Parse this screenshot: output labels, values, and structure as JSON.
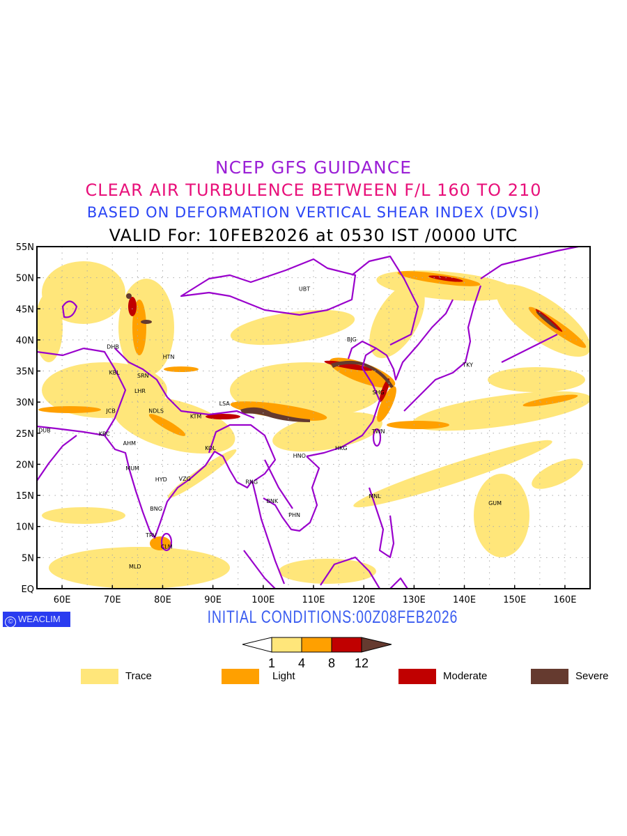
{
  "titles": {
    "line1": "NCEP GFS GUIDANCE",
    "line2": "CLEAR AIR TURBULENCE BETWEEN F/L 160 TO 210",
    "line3": "BASED ON DEFORMATION VERTICAL SHEAR INDEX (DVSI)",
    "line4": "VALID For: 10FEB2026 at 0530 IST /0000 UTC"
  },
  "map": {
    "lon_range": [
      55,
      165
    ],
    "lat_range": [
      0,
      55
    ],
    "lat_ticks": [
      "EQ",
      "5N",
      "10N",
      "15N",
      "20N",
      "25N",
      "30N",
      "35N",
      "40N",
      "45N",
      "50N",
      "55N"
    ],
    "lon_ticks": [
      "60E",
      "70E",
      "80E",
      "90E",
      "100E",
      "110E",
      "120E",
      "130E",
      "140E",
      "150E",
      "160E"
    ],
    "cities": [
      {
        "code": "UBT",
        "lon": 108.2,
        "lat": 48.2
      },
      {
        "code": "DHB",
        "lon": 70.1,
        "lat": 38.9
      },
      {
        "code": "KBL",
        "lon": 70.4,
        "lat": 34.8
      },
      {
        "code": "SRN",
        "lon": 76.1,
        "lat": 34.3
      },
      {
        "code": "LHR",
        "lon": 75.5,
        "lat": 31.8
      },
      {
        "code": "HTN",
        "lon": 81.2,
        "lat": 37.3
      },
      {
        "code": "JCB",
        "lon": 69.7,
        "lat": 28.6
      },
      {
        "code": "NDLS",
        "lon": 78.7,
        "lat": 28.6
      },
      {
        "code": "KTM",
        "lon": 86.6,
        "lat": 27.7
      },
      {
        "code": "LSA",
        "lon": 92.3,
        "lat": 29.8
      },
      {
        "code": "DUB",
        "lon": 56.5,
        "lat": 25.5
      },
      {
        "code": "KRC",
        "lon": 68.4,
        "lat": 24.9
      },
      {
        "code": "AHM",
        "lon": 73.4,
        "lat": 23.4
      },
      {
        "code": "KOL",
        "lon": 89.5,
        "lat": 22.6
      },
      {
        "code": "MUM",
        "lon": 74.0,
        "lat": 19.4
      },
      {
        "code": "HYD",
        "lon": 79.7,
        "lat": 17.6
      },
      {
        "code": "VZG",
        "lon": 84.4,
        "lat": 17.7
      },
      {
        "code": "RNG",
        "lon": 97.7,
        "lat": 17.2
      },
      {
        "code": "BNK",
        "lon": 101.8,
        "lat": 14.1
      },
      {
        "code": "PHN",
        "lon": 106.2,
        "lat": 11.9
      },
      {
        "code": "BNG",
        "lon": 78.7,
        "lat": 12.9
      },
      {
        "code": "TRV",
        "lon": 77.7,
        "lat": 8.6
      },
      {
        "code": "CLM",
        "lon": 80.8,
        "lat": 6.8
      },
      {
        "code": "MLD",
        "lon": 74.5,
        "lat": 3.6
      },
      {
        "code": "HNO",
        "lon": 107.2,
        "lat": 21.4
      },
      {
        "code": "HKG",
        "lon": 115.5,
        "lat": 22.6
      },
      {
        "code": "TWN",
        "lon": 122.9,
        "lat": 25.3
      },
      {
        "code": "SHG",
        "lon": 122.9,
        "lat": 31.6
      },
      {
        "code": "BJG",
        "lon": 117.6,
        "lat": 40.1
      },
      {
        "code": "TKY",
        "lon": 140.7,
        "lat": 36.0
      },
      {
        "code": "MNL",
        "lon": 122.2,
        "lat": 14.9
      },
      {
        "code": "GUM",
        "lon": 146.1,
        "lat": 13.8
      }
    ]
  },
  "logo": "WEACLIM",
  "initial_conditions": "INITIAL CONDITIONS:00Z08FEB2026",
  "colorbar": {
    "levels": [
      "1",
      "4",
      "8",
      "12"
    ],
    "colors": [
      "#ffe67a",
      "#ffa000",
      "#c00000",
      "#653a2f"
    ]
  },
  "legend": [
    {
      "label": "Trace",
      "color": "#ffe67a"
    },
    {
      "label": "Light",
      "color": "#ffa000"
    },
    {
      "label": "Moderate",
      "color": "#c00000"
    },
    {
      "label": "Severe",
      "color": "#653a2f"
    }
  ],
  "colors": {
    "coast": "#9900cc",
    "grid": "#aaaaaa"
  }
}
